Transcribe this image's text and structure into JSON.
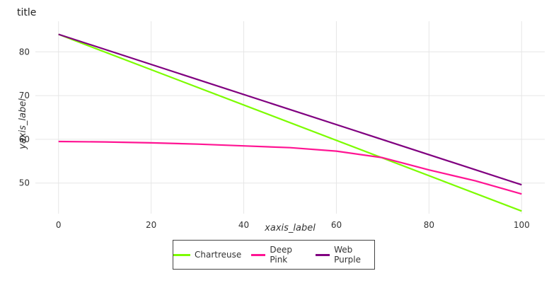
{
  "chart_data": {
    "type": "line",
    "title": "title",
    "xlabel": "xaxis_label",
    "ylabel": "yaxis_label",
    "xlim": [
      -5,
      105
    ],
    "ylim": [
      43,
      87
    ],
    "x_ticks": [
      0,
      20,
      40,
      60,
      80,
      100
    ],
    "y_ticks": [
      50,
      60,
      70,
      80
    ],
    "grid": true,
    "legend_position": "bottom",
    "series": [
      {
        "name": "Chartreuse",
        "color": "#7cfc00",
        "x": [
          0,
          100
        ],
        "y": [
          84,
          43.6
        ]
      },
      {
        "name": "Deep Pink",
        "color": "#ff1493",
        "x": [
          0,
          10,
          20,
          30,
          40,
          50,
          60,
          70,
          80,
          90,
          100
        ],
        "y": [
          59.5,
          59.4,
          59.2,
          58.9,
          58.5,
          58.1,
          57.3,
          55.8,
          53.0,
          50.5,
          47.5
        ]
      },
      {
        "name": "Web Purple",
        "color": "#800080",
        "x": [
          0,
          100
        ],
        "y": [
          84,
          49.6
        ]
      }
    ]
  }
}
